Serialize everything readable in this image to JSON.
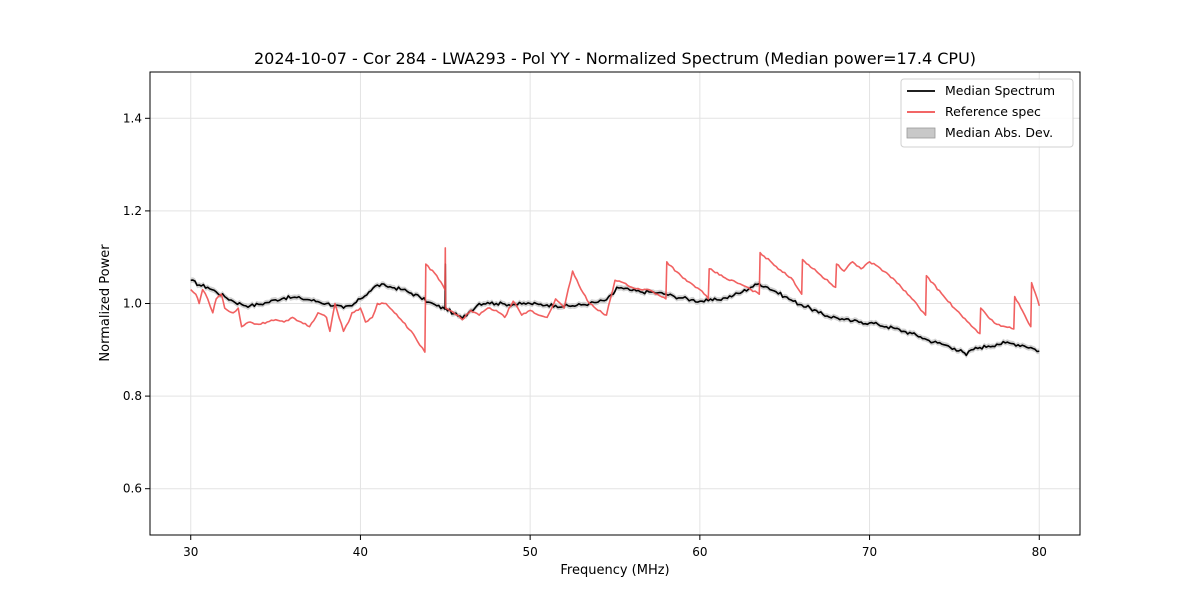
{
  "chart_data": {
    "type": "line",
    "title": "2024-10-07 - Cor 284 - LWA293 - Pol YY - Normalized Spectrum (Median power=17.4 CPU)",
    "xlabel": "Frequency (MHz)",
    "ylabel": "Normalized Power",
    "xlim": [
      27.6,
      82.4
    ],
    "ylim": [
      0.5,
      1.5
    ],
    "x_ticks": [
      30,
      40,
      50,
      60,
      70,
      80
    ],
    "y_ticks": [
      0.6,
      0.8,
      1.0,
      1.2,
      1.4
    ],
    "grid": true,
    "legend_position": "top-right",
    "legend": [
      {
        "label": "Median Spectrum",
        "kind": "line",
        "color": "#000000"
      },
      {
        "label": "Reference spec",
        "kind": "line",
        "color": "#f05050"
      },
      {
        "label": "Median Abs. Dev.",
        "kind": "patch",
        "color": "#c8c8c8"
      }
    ],
    "series": [
      {
        "name": "Median Spectrum",
        "color": "#000000",
        "mad": 0.006,
        "x": [
          30.0,
          30.5,
          31.0,
          31.5,
          32.0,
          32.5,
          33.0,
          33.5,
          34.0,
          34.5,
          35.0,
          35.5,
          36.0,
          36.5,
          37.0,
          37.5,
          38.0,
          38.5,
          39.0,
          39.5,
          40.0,
          40.5,
          41.0,
          41.5,
          42.0,
          42.5,
          43.0,
          43.5,
          44.0,
          44.5,
          44.98,
          45.0,
          45.02,
          45.5,
          46.0,
          46.5,
          47.0,
          47.5,
          48.0,
          48.5,
          49.0,
          49.5,
          50.0,
          50.5,
          51.0,
          51.5,
          52.0,
          52.5,
          53.0,
          53.5,
          54.0,
          54.5,
          54.9,
          55.1,
          55.5,
          56.0,
          56.5,
          57.0,
          57.5,
          58.0,
          58.5,
          59.0,
          59.5,
          60.0,
          60.5,
          61.0,
          61.5,
          62.0,
          62.5,
          63.0,
          63.5,
          64.0,
          64.5,
          65.0,
          65.5,
          66.0,
          66.5,
          67.0,
          67.5,
          68.0,
          68.5,
          69.0,
          69.5,
          70.0,
          70.5,
          71.0,
          71.5,
          72.0,
          72.5,
          73.0,
          73.5,
          74.0,
          74.5,
          75.0,
          75.5,
          75.7,
          76.0,
          76.5,
          77.0,
          77.5,
          78.0,
          78.5,
          79.0,
          79.5,
          80.0
        ],
        "y": [
          1.05,
          1.04,
          1.035,
          1.025,
          1.015,
          1.005,
          0.998,
          0.995,
          0.998,
          1.002,
          1.008,
          1.012,
          1.013,
          1.011,
          1.008,
          1.004,
          1.0,
          0.996,
          0.99,
          0.995,
          1.01,
          1.025,
          1.04,
          1.038,
          1.034,
          1.03,
          1.022,
          1.014,
          1.003,
          0.995,
          0.988,
          1.085,
          0.99,
          0.978,
          0.968,
          0.985,
          1.0,
          1.002,
          1.0,
          0.999,
          0.998,
          0.999,
          1.0,
          0.998,
          0.997,
          0.996,
          0.994,
          0.995,
          0.997,
          1.0,
          1.003,
          1.008,
          1.02,
          1.035,
          1.032,
          1.028,
          1.025,
          1.025,
          1.023,
          1.02,
          1.015,
          1.012,
          1.008,
          1.005,
          1.006,
          1.008,
          1.012,
          1.018,
          1.025,
          1.035,
          1.043,
          1.035,
          1.025,
          1.015,
          1.005,
          0.997,
          0.99,
          0.98,
          0.973,
          0.97,
          0.965,
          0.962,
          0.96,
          0.958,
          0.955,
          0.95,
          0.946,
          0.94,
          0.935,
          0.928,
          0.92,
          0.915,
          0.91,
          0.903,
          0.895,
          0.888,
          0.9,
          0.905,
          0.908,
          0.912,
          0.915,
          0.913,
          0.91,
          0.905,
          0.897
        ]
      },
      {
        "name": "Reference spec",
        "color": "#f05050",
        "x": [
          30.0,
          30.3,
          30.5,
          30.7,
          31.0,
          31.3,
          31.5,
          31.8,
          32.0,
          32.5,
          32.8,
          33.0,
          33.5,
          34.0,
          34.5,
          35.0,
          35.5,
          36.0,
          36.5,
          37.0,
          37.5,
          38.0,
          38.2,
          38.5,
          39.0,
          39.3,
          39.5,
          40.0,
          40.3,
          40.7,
          41.0,
          41.5,
          42.0,
          42.5,
          43.0,
          43.5,
          43.8,
          43.85,
          44.5,
          44.98,
          45.0,
          45.02,
          45.5,
          46.0,
          46.5,
          47.0,
          47.5,
          48.0,
          48.5,
          49.0,
          49.5,
          50.0,
          50.5,
          51.0,
          51.5,
          52.0,
          52.5,
          53.0,
          53.5,
          54.0,
          54.5,
          55.0,
          55.5,
          56.0,
          56.5,
          57.0,
          57.5,
          58.0,
          58.05,
          59.0,
          60.0,
          60.5,
          60.55,
          61.5,
          62.5,
          63.5,
          63.55,
          64.5,
          65.5,
          66.0,
          66.05,
          67.0,
          68.0,
          68.05,
          68.5,
          69.0,
          69.5,
          70.0,
          70.5,
          71.5,
          72.5,
          73.3,
          73.35,
          74.5,
          75.5,
          76.5,
          76.55,
          77.0,
          77.2,
          77.5,
          78.0,
          78.5,
          78.55,
          79.5,
          79.55,
          80.0
        ],
        "y": [
          1.03,
          1.02,
          1.0,
          1.03,
          1.01,
          0.98,
          1.01,
          1.02,
          0.99,
          0.98,
          0.99,
          0.95,
          0.96,
          0.955,
          0.96,
          0.965,
          0.96,
          0.97,
          0.96,
          0.95,
          0.98,
          0.97,
          0.94,
          1.0,
          0.94,
          0.96,
          0.98,
          0.99,
          0.96,
          0.97,
          1.0,
          1.0,
          0.98,
          0.96,
          0.94,
          0.91,
          0.895,
          1.085,
          1.06,
          1.03,
          1.12,
          0.99,
          0.98,
          0.965,
          0.985,
          0.975,
          0.99,
          0.985,
          0.97,
          1.005,
          0.975,
          0.985,
          0.975,
          0.97,
          1.01,
          0.99,
          1.07,
          1.03,
          1.0,
          0.985,
          0.975,
          1.05,
          1.045,
          1.035,
          1.03,
          1.03,
          1.02,
          1.01,
          1.09,
          1.055,
          1.03,
          1.01,
          1.075,
          1.055,
          1.04,
          1.02,
          1.11,
          1.08,
          1.05,
          1.02,
          1.095,
          1.065,
          1.035,
          1.085,
          1.07,
          1.09,
          1.075,
          1.09,
          1.08,
          1.05,
          1.01,
          0.975,
          1.06,
          1.01,
          0.97,
          0.935,
          0.99,
          0.97,
          0.965,
          0.955,
          0.95,
          0.945,
          1.015,
          0.95,
          1.045,
          0.995
        ]
      }
    ]
  }
}
